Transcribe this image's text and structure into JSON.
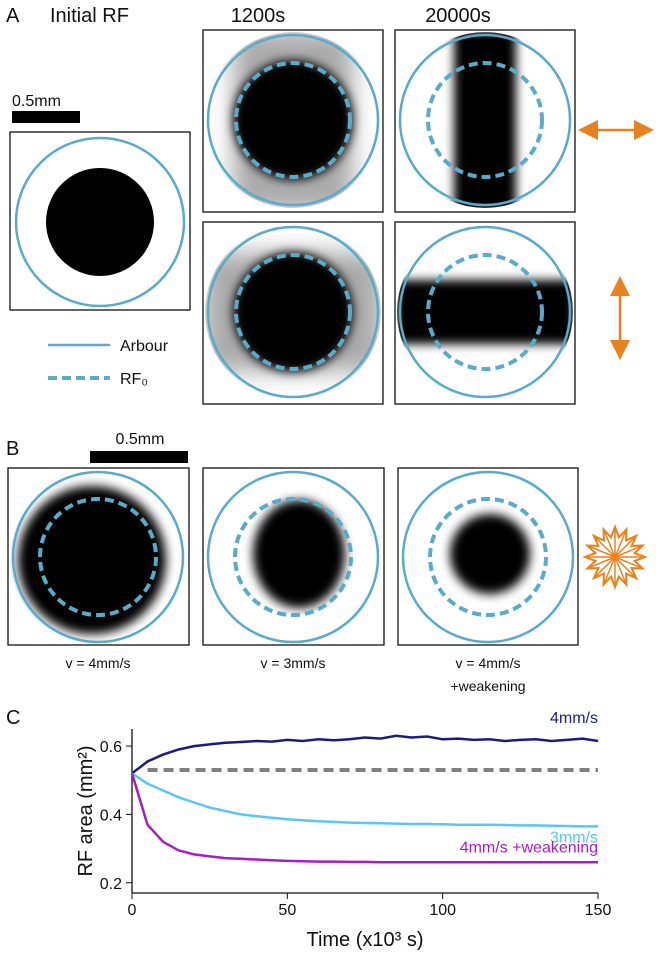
{
  "panel_a": {
    "label": "A",
    "titles": [
      "Initial RF",
      "1200s",
      "20000s"
    ],
    "scale_bar": "0.5mm",
    "legend": [
      "Arbour",
      "RF₀"
    ]
  },
  "panel_b": {
    "label": "B",
    "scale_bar": "0.5mm",
    "captions": [
      [
        "v = 4mm/s"
      ],
      [
        "v = 3mm/s"
      ],
      [
        "v = 4mm/s",
        "+weakening"
      ]
    ]
  },
  "panel_c": {
    "label": "C"
  },
  "chart_data": {
    "type": "line",
    "xlabel": "Time (x10³ s)",
    "ylabel": "RF area (mm²)",
    "x": [
      0,
      5,
      10,
      15,
      20,
      25,
      30,
      35,
      40,
      45,
      50,
      55,
      60,
      65,
      70,
      75,
      80,
      85,
      90,
      95,
      100,
      105,
      110,
      115,
      120,
      125,
      130,
      135,
      140,
      145,
      150
    ],
    "series": [
      {
        "name": "4mm/s",
        "color": "#1c1c80",
        "values": [
          0.52,
          0.555,
          0.575,
          0.59,
          0.6,
          0.605,
          0.61,
          0.612,
          0.615,
          0.613,
          0.618,
          0.615,
          0.62,
          0.617,
          0.62,
          0.625,
          0.622,
          0.63,
          0.625,
          0.628,
          0.62,
          0.622,
          0.618,
          0.62,
          0.615,
          0.618,
          0.62,
          0.615,
          0.618,
          0.622,
          0.615
        ]
      },
      {
        "name": "3mm/s",
        "color": "#5cc6f2",
        "values": [
          0.52,
          0.49,
          0.47,
          0.45,
          0.435,
          0.42,
          0.41,
          0.4,
          0.395,
          0.39,
          0.386,
          0.383,
          0.38,
          0.378,
          0.376,
          0.375,
          0.374,
          0.373,
          0.372,
          0.372,
          0.371,
          0.37,
          0.37,
          0.37,
          0.369,
          0.368,
          0.368,
          0.367,
          0.366,
          0.365,
          0.365
        ]
      },
      {
        "name": "4mm/s +weakening",
        "color": "#a51fc0",
        "values": [
          0.52,
          0.37,
          0.32,
          0.295,
          0.283,
          0.277,
          0.272,
          0.27,
          0.268,
          0.266,
          0.264,
          0.263,
          0.262,
          0.262,
          0.261,
          0.261,
          0.26,
          0.26,
          0.26,
          0.26,
          0.26,
          0.26,
          0.26,
          0.26,
          0.26,
          0.26,
          0.26,
          0.26,
          0.26,
          0.26,
          0.26
        ]
      }
    ],
    "hline": 0.53,
    "hline_color": "#808080",
    "xlim": [
      0,
      150
    ],
    "xticks": [
      0,
      50,
      100,
      150
    ],
    "ylim": [
      0.17,
      0.65
    ],
    "yticks": [
      0.2,
      0.4,
      0.6
    ]
  }
}
